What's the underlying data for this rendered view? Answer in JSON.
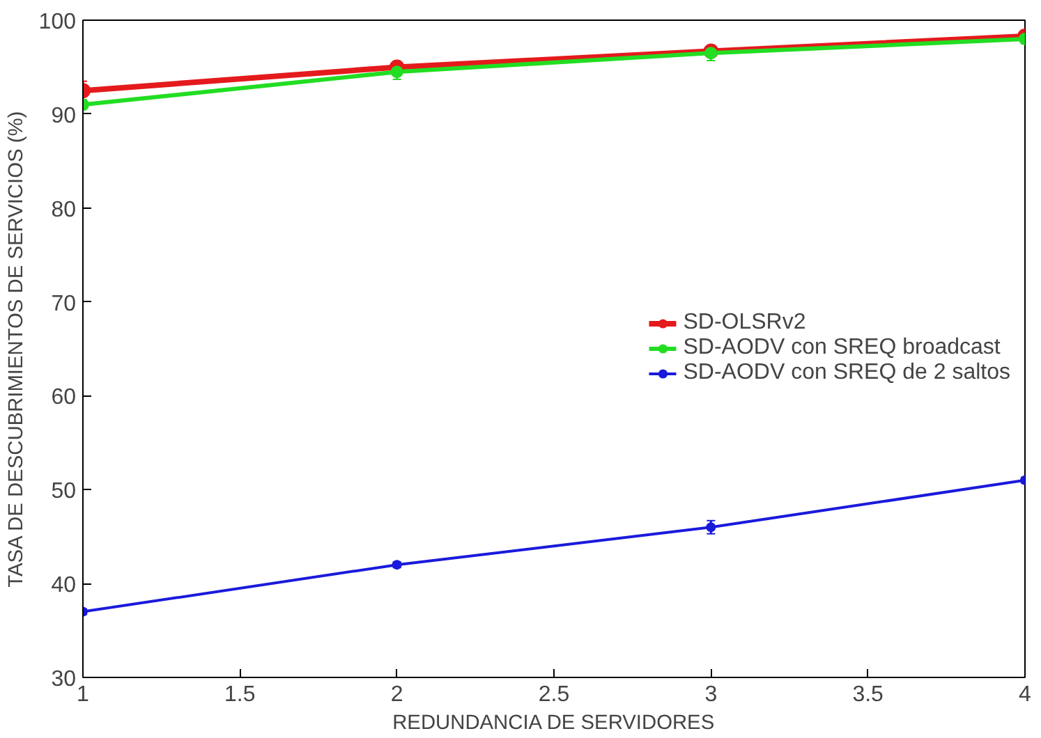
{
  "chart_data": {
    "type": "line",
    "xlabel": "REDUNDANCIA DE SERVIDORES",
    "ylabel": "TASA DE DESCUBRIMIENTOS DE SERVICIOS (%)",
    "x": [
      1,
      2,
      3,
      4
    ],
    "series": [
      {
        "name": "SD-OLSRv2",
        "color": "#e41a1c",
        "values": [
          92.5,
          95,
          96.7,
          98.3
        ],
        "errors": [
          1,
          0.5,
          0.5,
          0.5
        ]
      },
      {
        "name": "SD-AODV con SREQ broadcast",
        "color": "#22dd22",
        "values": [
          91,
          94.5,
          96.5,
          98
        ],
        "errors": [
          0.5,
          0.8,
          0.8,
          0.5
        ]
      },
      {
        "name": "SD-AODV con SREQ de 2 saltos",
        "color": "#1a1adc",
        "values": [
          37,
          42,
          46,
          51
        ],
        "errors": [
          0.3,
          0.3,
          0.7,
          0.3
        ]
      }
    ],
    "xlim": [
      1,
      4
    ],
    "ylim": [
      30,
      100
    ],
    "xticks": [
      1,
      1.5,
      2,
      2.5,
      3,
      3.5,
      4
    ],
    "yticks": [
      30,
      40,
      50,
      60,
      70,
      80,
      90,
      100
    ],
    "grid": false,
    "legend": "right",
    "marker": "circle",
    "line_style": "solid"
  }
}
